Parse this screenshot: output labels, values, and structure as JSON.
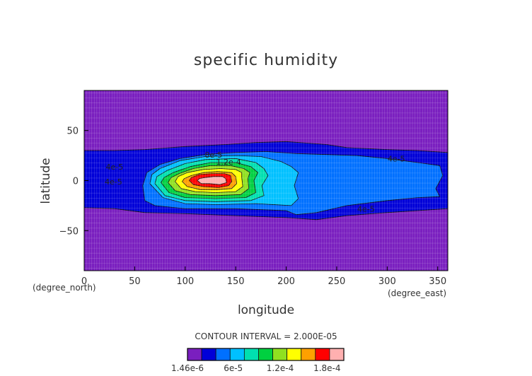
{
  "chart_data": {
    "type": "heatmap",
    "title": "specific humidity",
    "xlabel": "longitude",
    "ylabel": "latitude",
    "x_unit": "(degree_east)",
    "y_unit": "(degree_north)",
    "xlim": [
      0,
      360
    ],
    "ylim": [
      -90,
      90
    ],
    "x_ticks": [
      "0",
      "50",
      "100",
      "150",
      "200",
      "250",
      "300",
      "350"
    ],
    "y_ticks": [
      "50",
      "0",
      "−50"
    ],
    "grid": true,
    "contour_interval_text": "CONTOUR INTERVAL = 2.000E-05",
    "colorbar_ticks": [
      "1.46e-6",
      "6e-5",
      "1.2e-4",
      "1.8e-4"
    ],
    "contour_labels": [
      "8e-5",
      "1.2e-4",
      "4e-5",
      "4e-5",
      "4e-5",
      "4e-5"
    ],
    "levels": [
      1.46e-06,
      2.146e-05,
      4.146e-05,
      6.146e-05,
      8.146e-05,
      0.00010146,
      0.00012146,
      0.00014146,
      0.00016146,
      0.00018146,
      0.00020146
    ],
    "colors": [
      "#7a1fbf",
      "#0000d8",
      "#0070ff",
      "#00c0ff",
      "#00e0b0",
      "#00d040",
      "#90e020",
      "#ffff00",
      "#ffa000",
      "#ff0000",
      "#ffb0b0"
    ],
    "regions": [
      {
        "level_index": 1,
        "outline": [
          [
            0,
            -27
          ],
          [
            30,
            -28
          ],
          [
            60,
            -32
          ],
          [
            100,
            -33
          ],
          [
            150,
            -35
          ],
          [
            200,
            -37
          ],
          [
            230,
            -39
          ],
          [
            260,
            -35
          ],
          [
            300,
            -32
          ],
          [
            330,
            -30
          ],
          [
            360,
            -28
          ],
          [
            360,
            28
          ],
          [
            330,
            30
          ],
          [
            300,
            31
          ],
          [
            260,
            33
          ],
          [
            240,
            36
          ],
          [
            200,
            39
          ],
          [
            170,
            38
          ],
          [
            140,
            36
          ],
          [
            100,
            34
          ],
          [
            60,
            31
          ],
          [
            30,
            30
          ],
          [
            0,
            30
          ]
        ]
      },
      {
        "level_index": 2,
        "outline": [
          [
            60,
            -20
          ],
          [
            70,
            -25
          ],
          [
            100,
            -28
          ],
          [
            150,
            -28
          ],
          [
            200,
            -30
          ],
          [
            210,
            -34
          ],
          [
            230,
            -32
          ],
          [
            260,
            -25
          ],
          [
            300,
            -20
          ],
          [
            330,
            -17
          ],
          [
            352,
            -16
          ],
          [
            348,
            -8
          ],
          [
            355,
            5
          ],
          [
            352,
            15
          ],
          [
            330,
            18
          ],
          [
            300,
            22
          ],
          [
            270,
            25
          ],
          [
            240,
            26
          ],
          [
            210,
            27
          ],
          [
            180,
            29
          ],
          [
            150,
            28
          ],
          [
            120,
            26
          ],
          [
            95,
            22
          ],
          [
            75,
            16
          ],
          [
            62,
            8
          ],
          [
            58,
            -5
          ]
        ]
      },
      {
        "level_index": 3,
        "outline": [
          [
            65,
            -3
          ],
          [
            78,
            -17
          ],
          [
            100,
            -23
          ],
          [
            130,
            -24
          ],
          [
            170,
            -23
          ],
          [
            205,
            -25
          ],
          [
            212,
            -18
          ],
          [
            208,
            -5
          ],
          [
            212,
            8
          ],
          [
            205,
            14
          ],
          [
            195,
            19
          ],
          [
            175,
            24
          ],
          [
            150,
            25
          ],
          [
            120,
            24
          ],
          [
            95,
            20
          ],
          [
            75,
            12
          ],
          [
            67,
            6
          ]
        ]
      },
      {
        "level_index": 4,
        "outline": [
          [
            70,
            -3
          ],
          [
            80,
            -15
          ],
          [
            100,
            -20
          ],
          [
            130,
            -21
          ],
          [
            165,
            -20
          ],
          [
            178,
            -15
          ],
          [
            176,
            -5
          ],
          [
            182,
            5
          ],
          [
            178,
            12
          ],
          [
            170,
            18
          ],
          [
            150,
            22
          ],
          [
            120,
            21
          ],
          [
            100,
            17
          ],
          [
            82,
            10
          ],
          [
            72,
            4
          ]
        ]
      },
      {
        "level_index": 5,
        "outline": [
          [
            76,
            -2
          ],
          [
            84,
            -12
          ],
          [
            100,
            -17
          ],
          [
            130,
            -18
          ],
          [
            160,
            -17
          ],
          [
            170,
            -12
          ],
          [
            168,
            0
          ],
          [
            172,
            8
          ],
          [
            165,
            14
          ],
          [
            150,
            18
          ],
          [
            125,
            18
          ],
          [
            105,
            14
          ],
          [
            88,
            8
          ],
          [
            79,
            3
          ]
        ]
      },
      {
        "level_index": 6,
        "outline": [
          [
            83,
            -2
          ],
          [
            90,
            -10
          ],
          [
            105,
            -14
          ],
          [
            130,
            -15
          ],
          [
            155,
            -14
          ],
          [
            163,
            -8
          ],
          [
            162,
            2
          ],
          [
            164,
            8
          ],
          [
            158,
            12
          ],
          [
            145,
            15
          ],
          [
            125,
            15
          ],
          [
            108,
            12
          ],
          [
            94,
            7
          ],
          [
            86,
            3
          ]
        ]
      },
      {
        "level_index": 7,
        "outline": [
          [
            90,
            -1
          ],
          [
            96,
            -8
          ],
          [
            110,
            -11
          ],
          [
            130,
            -12
          ],
          [
            150,
            -11
          ],
          [
            157,
            -6
          ],
          [
            156,
            3
          ],
          [
            156,
            8
          ],
          [
            150,
            11
          ],
          [
            135,
            12
          ],
          [
            118,
            11
          ],
          [
            102,
            8
          ],
          [
            93,
            4
          ]
        ]
      },
      {
        "level_index": 8,
        "outline": [
          [
            97,
            -1
          ],
          [
            102,
            -6
          ],
          [
            115,
            -9
          ],
          [
            132,
            -9
          ],
          [
            146,
            -8
          ],
          [
            151,
            -3
          ],
          [
            150,
            4
          ],
          [
            146,
            8
          ],
          [
            132,
            9
          ],
          [
            118,
            8
          ],
          [
            106,
            5
          ],
          [
            99,
            2
          ]
        ]
      },
      {
        "level_index": 9,
        "outline": [
          [
            104,
            0
          ],
          [
            108,
            -4
          ],
          [
            118,
            -6
          ],
          [
            133,
            -7
          ],
          [
            143,
            -5
          ],
          [
            146,
            -1
          ],
          [
            145,
            5
          ],
          [
            139,
            7
          ],
          [
            126,
            7
          ],
          [
            114,
            6
          ],
          [
            106,
            3
          ]
        ]
      },
      {
        "level_index": 10,
        "outline": [
          [
            112,
            0
          ],
          [
            116,
            -3
          ],
          [
            124,
            -3
          ],
          [
            134,
            -4
          ],
          [
            141,
            -2
          ],
          [
            140,
            2
          ],
          [
            137,
            4
          ],
          [
            128,
            4
          ],
          [
            119,
            3
          ],
          [
            114,
            2
          ]
        ]
      }
    ]
  }
}
